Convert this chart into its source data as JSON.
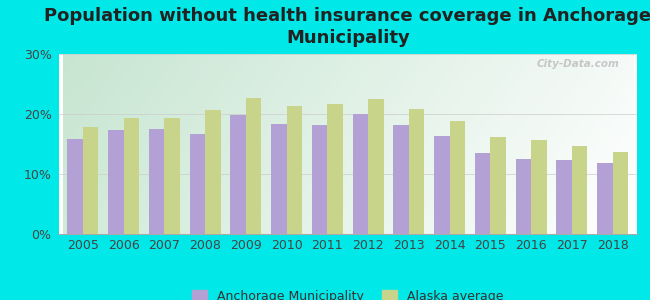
{
  "title": "Population without health insurance coverage in Anchorage\nMunicipality",
  "years": [
    2005,
    2006,
    2007,
    2008,
    2009,
    2010,
    2011,
    2012,
    2013,
    2014,
    2015,
    2016,
    2017,
    2018
  ],
  "anchorage": [
    15.8,
    17.3,
    17.5,
    16.7,
    19.9,
    18.4,
    18.1,
    20.0,
    18.1,
    16.3,
    13.5,
    12.5,
    12.4,
    11.8
  ],
  "alaska": [
    17.9,
    19.3,
    19.4,
    20.6,
    22.7,
    21.3,
    21.6,
    22.5,
    20.8,
    18.9,
    16.1,
    15.6,
    14.7,
    13.7
  ],
  "anchorage_color": "#b3a0d4",
  "alaska_color": "#c8d48a",
  "background_color": "#00e8e8",
  "ylim": [
    0,
    30
  ],
  "yticks": [
    0,
    10,
    20,
    30
  ],
  "ytick_labels": [
    "0%",
    "10%",
    "20%",
    "30%"
  ],
  "legend_anchorage": "Anchorage Municipality",
  "legend_alaska": "Alaska average",
  "title_fontsize": 13,
  "tick_fontsize": 9,
  "legend_fontsize": 9,
  "bar_width": 0.38,
  "watermark": "City-Data.com"
}
